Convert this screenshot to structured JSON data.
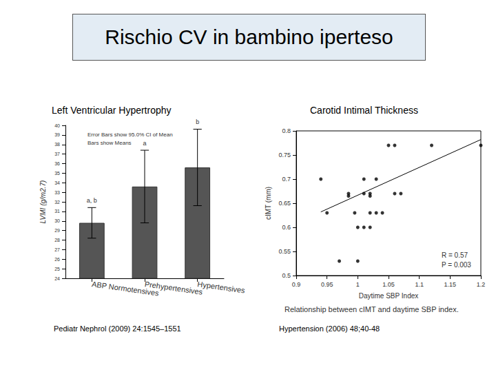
{
  "title": "Rischio CV in bambino iperteso",
  "chart_data": [
    {
      "type": "bar",
      "title": "Left Ventricular Hypertrophy",
      "y_label": "LVMI (g/m2.7)",
      "categories": [
        "ABP Normotensives",
        "Prehypertensives",
        "Hypertensives"
      ],
      "values": [
        29.8,
        33.6,
        35.6
      ],
      "error_low": [
        28.2,
        29.8,
        31.6
      ],
      "error_high": [
        31.4,
        37.4,
        39.6
      ],
      "bar_annotations": [
        "a, b",
        "a",
        "b"
      ],
      "annotations": [
        "Error Bars show 95.0% CI of Mean",
        "Bars show Means"
      ],
      "color": "#555555",
      "ylim": [
        24,
        40
      ],
      "yticks": [
        24,
        25,
        26,
        27,
        28,
        29,
        30,
        31,
        32,
        33,
        34,
        35,
        36,
        37,
        38,
        39,
        40
      ],
      "grid": false,
      "source": "Pediatr Nephrol (2009) 24:1545–1551"
    },
    {
      "type": "scatter",
      "title": "Carotid Intimal Thickness",
      "x_label": "Daytime SBP Index",
      "y_label": "cIMT (mm)",
      "x": [
        0.94,
        0.95,
        0.97,
        0.985,
        0.985,
        0.995,
        1.0,
        1.0,
        1.01,
        1.01,
        1.01,
        1.02,
        1.02,
        1.02,
        1.02,
        1.03,
        1.03,
        1.04,
        1.05,
        1.06,
        1.06,
        1.07,
        1.12,
        1.2
      ],
      "values": [
        0.7,
        0.63,
        0.53,
        0.67,
        0.665,
        0.63,
        0.6,
        0.53,
        0.7,
        0.67,
        0.6,
        0.63,
        0.67,
        0.665,
        0.6,
        0.7,
        0.63,
        0.63,
        0.77,
        0.77,
        0.67,
        0.67,
        0.77,
        0.77
      ],
      "trend_line": {
        "x": [
          0.94,
          1.2
        ],
        "y": [
          0.632,
          0.782
        ]
      },
      "annotations": [
        "R = 0.57",
        "P = 0.003"
      ],
      "caption": "Relationship between cIMT and daytime SBP index.",
      "color": "#000000",
      "marker": "circle",
      "xlim": [
        0.9,
        1.2
      ],
      "xticks": [
        0.9,
        0.95,
        1,
        1.05,
        1.1,
        1.15,
        1.2
      ],
      "ylim": [
        0.5,
        0.8
      ],
      "yticks": [
        0.5,
        0.55,
        0.6,
        0.65,
        0.7,
        0.75,
        0.8
      ],
      "grid": false,
      "source": "Hypertension (2006) 48;40-48"
    }
  ]
}
